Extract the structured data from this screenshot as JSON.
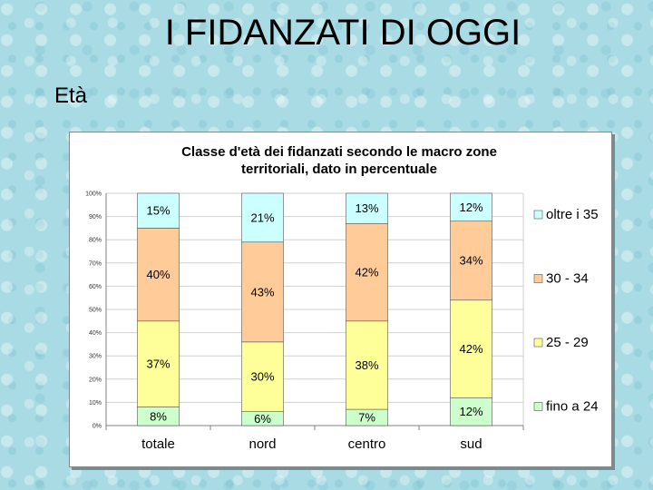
{
  "slide": {
    "title": "I FIDANZATI DI OGGI",
    "subtitle": "Età"
  },
  "chart_data": {
    "type": "bar",
    "stacked": true,
    "title_lines": [
      "Classe d'età dei fidanzati secondo le macro zone",
      "territoriali, dato in percentuale"
    ],
    "categories": [
      "totale",
      "nord",
      "centro",
      "sud"
    ],
    "series": [
      {
        "name": "fino a 24",
        "color": "#ccffcc",
        "values": [
          8,
          6,
          7,
          12
        ],
        "labels": [
          "8%",
          "6%",
          "7%",
          "12%"
        ]
      },
      {
        "name": "25 - 29",
        "color": "#ffff99",
        "values": [
          37,
          30,
          38,
          42
        ],
        "labels": [
          "37%",
          "30%",
          "38%",
          "42%"
        ]
      },
      {
        "name": "30 - 34",
        "color": "#ffcc99",
        "values": [
          40,
          43,
          42,
          34
        ],
        "labels": [
          "40%",
          "43%",
          "42%",
          "34%"
        ]
      },
      {
        "name": "oltre i 35",
        "color": "#ccffff",
        "values": [
          15,
          21,
          13,
          12
        ],
        "labels": [
          "15%",
          "21%",
          "13%",
          "12%"
        ]
      }
    ],
    "y_ticks": [
      "0%",
      "10%",
      "20%",
      "30%",
      "40%",
      "50%",
      "60%",
      "70%",
      "80%",
      "90%",
      "100%"
    ],
    "ylim": [
      0,
      100
    ],
    "grid": true,
    "legend_position": "right",
    "legend_order": [
      "oltre i 35",
      "30 - 34",
      "25 - 29",
      "fino a 24"
    ]
  }
}
